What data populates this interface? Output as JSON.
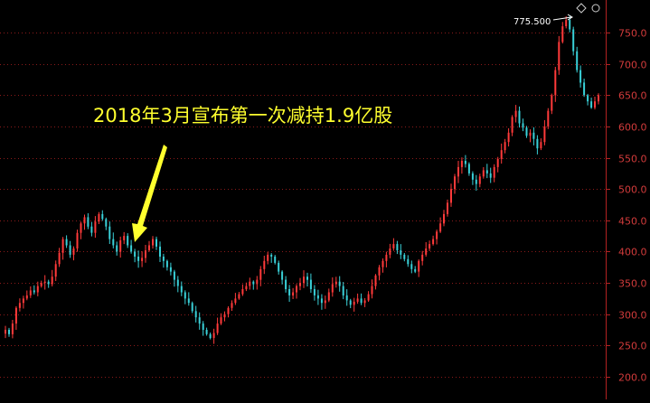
{
  "chart_data": {
    "type": "candlestick",
    "title": "",
    "xlabel": "",
    "ylabel": "",
    "ylim": [
      183,
      785
    ],
    "y_ticks": [
      "200.0",
      "250.0",
      "300.0",
      "350.0",
      "400.0",
      "450.0",
      "500.0",
      "550.0",
      "600.0",
      "650.0",
      "700.0",
      "750.0"
    ],
    "grid": true,
    "colors": {
      "up": "#ff3a3a",
      "down": "#39d0d8",
      "axis": "#b22222",
      "grid": "#8b1a1a",
      "annotation": "#ffff2e",
      "max_label": "#ffffff"
    },
    "max_label": {
      "text": "775.500",
      "value": 775.5
    },
    "annotation": {
      "text": "2018年3月宣布第一次减持1.9亿股",
      "points_to_value": 395
    },
    "series_close": [
      275,
      268,
      285,
      310,
      318,
      325,
      330,
      338,
      335,
      345,
      350,
      352,
      348,
      360,
      380,
      398,
      420,
      410,
      395,
      405,
      430,
      445,
      455,
      440,
      430,
      448,
      460,
      452,
      440,
      420,
      410,
      400,
      418,
      425,
      410,
      400,
      392,
      385,
      390,
      402,
      410,
      420,
      408,
      392,
      385,
      375,
      368,
      355,
      345,
      335,
      325,
      318,
      305,
      295,
      285,
      275,
      268,
      262,
      270,
      285,
      295,
      300,
      310,
      318,
      325,
      332,
      340,
      345,
      352,
      348,
      355,
      372,
      385,
      395,
      392,
      382,
      368,
      355,
      340,
      330,
      335,
      345,
      350,
      360,
      355,
      340,
      330,
      325,
      318,
      322,
      335,
      348,
      352,
      345,
      330,
      322,
      315,
      320,
      325,
      318,
      322,
      332,
      345,
      362,
      375,
      385,
      395,
      405,
      412,
      402,
      395,
      388,
      380,
      372,
      368,
      385,
      395,
      405,
      412,
      420,
      432,
      445,
      460,
      478,
      500,
      520,
      535,
      545,
      540,
      525,
      515,
      508,
      520,
      530,
      525,
      518,
      535,
      548,
      562,
      575,
      590,
      615,
      625,
      605,
      598,
      585,
      590,
      580,
      565,
      575,
      600,
      625,
      650,
      690,
      735,
      760,
      770,
      755,
      720,
      690,
      670,
      650,
      640,
      630,
      640,
      650
    ]
  }
}
